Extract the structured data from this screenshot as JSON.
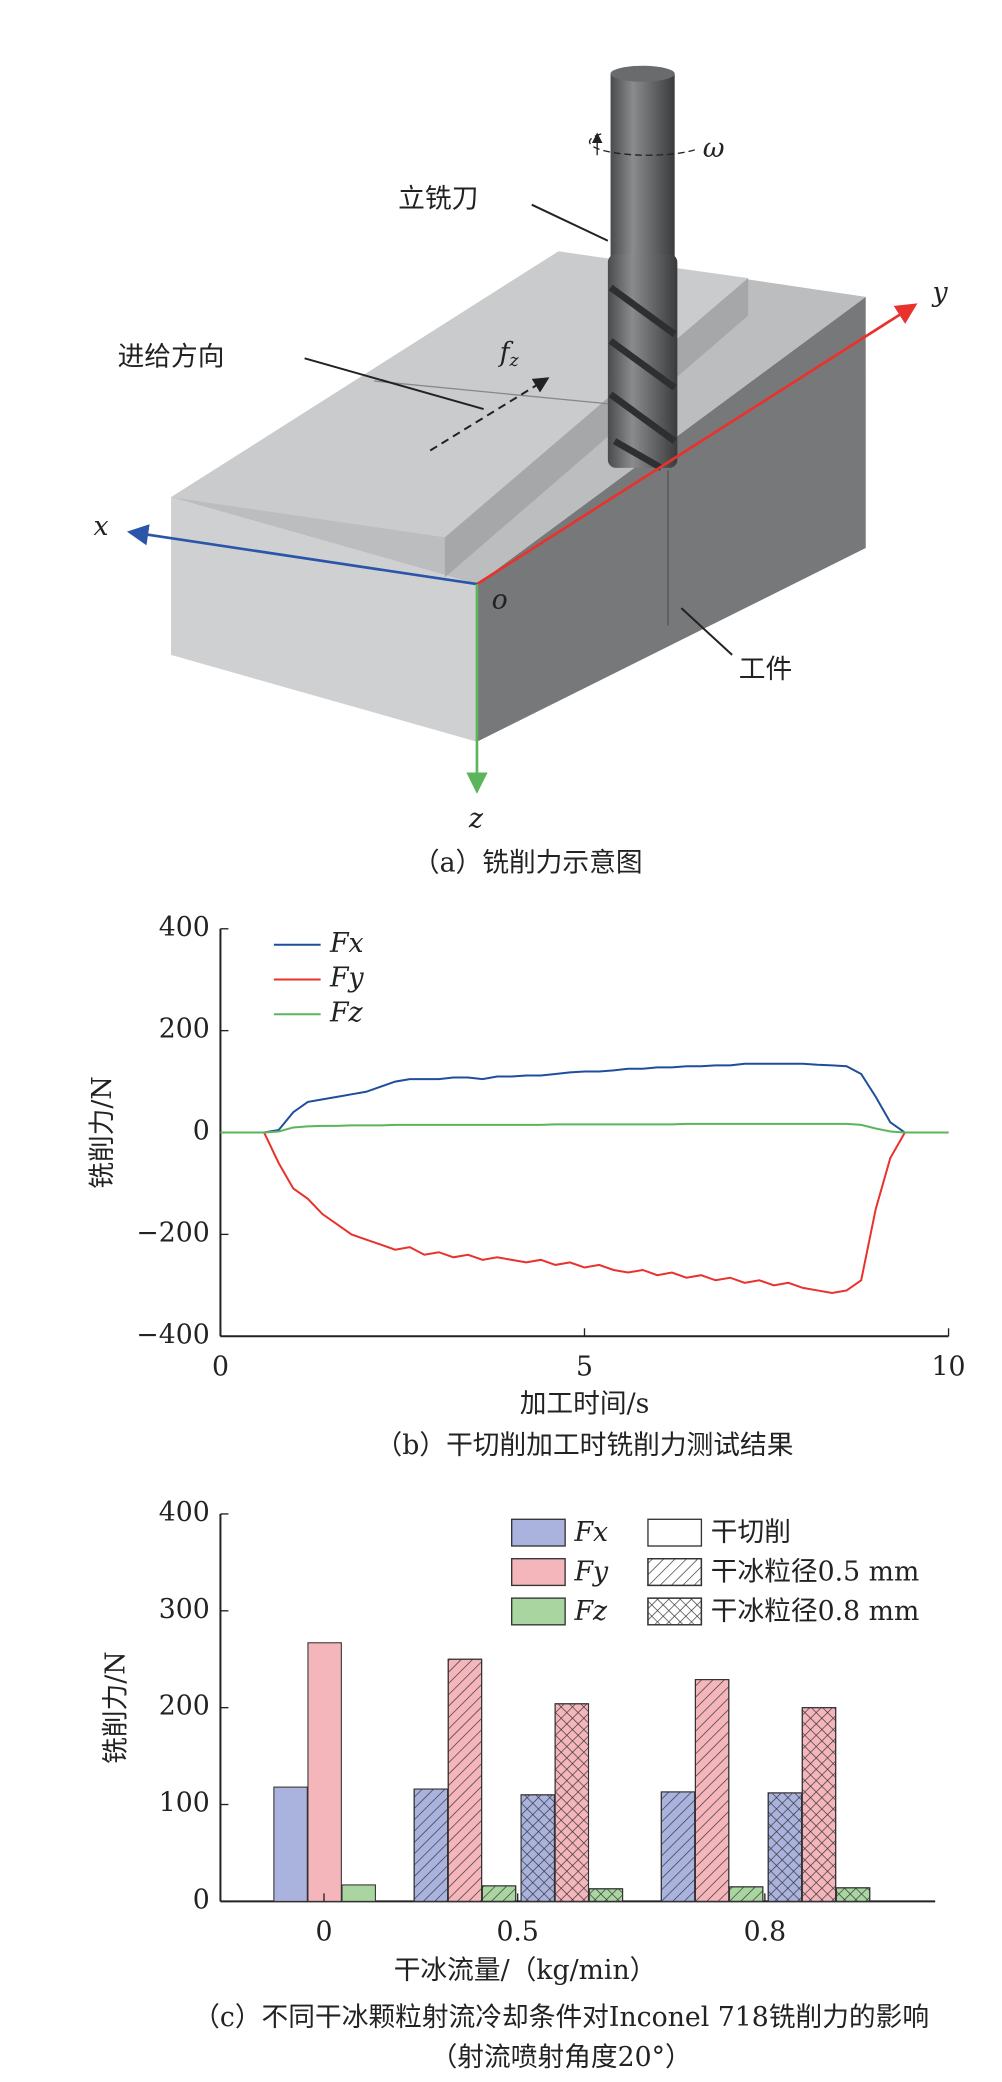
{
  "diagram": {
    "tool": "立铣刀",
    "feed": "进给方向",
    "feed_symbol": {
      "base": "f",
      "sub": "z"
    },
    "omega": "ω",
    "workpiece": "工件",
    "axis_x": "x",
    "axis_y": "y",
    "axis_z": "z",
    "origin": "o",
    "caption": "（a）铣削力示意图"
  },
  "chart_data": [
    {
      "type": "line",
      "ylabel": "铣削力/N",
      "xlabel": "加工时间/s",
      "caption": "（b）干切削加工时铣削力测试结果",
      "x": [
        0,
        0.2,
        0.4,
        0.6,
        0.8,
        1.0,
        1.2,
        1.4,
        1.6,
        1.8,
        2.0,
        2.2,
        2.4,
        2.6,
        2.8,
        3.0,
        3.2,
        3.4,
        3.6,
        3.8,
        4.0,
        4.2,
        4.4,
        4.6,
        4.8,
        5.0,
        5.2,
        5.4,
        5.6,
        5.8,
        6.0,
        6.2,
        6.4,
        6.6,
        6.8,
        7.0,
        7.2,
        7.4,
        7.6,
        7.8,
        8.0,
        8.2,
        8.4,
        8.6,
        8.8,
        9.0,
        9.2,
        9.4,
        9.6,
        9.8,
        10.0
      ],
      "series": [
        {
          "name": "Fx",
          "color": "#1f4e9c",
          "values": [
            0,
            0,
            0,
            0,
            5,
            40,
            60,
            65,
            70,
            75,
            80,
            90,
            100,
            105,
            105,
            105,
            108,
            108,
            105,
            110,
            110,
            112,
            112,
            115,
            118,
            120,
            120,
            122,
            125,
            125,
            128,
            128,
            130,
            130,
            132,
            132,
            135,
            135,
            135,
            135,
            135,
            133,
            132,
            130,
            115,
            70,
            20,
            0,
            0,
            0,
            0
          ]
        },
        {
          "name": "Fy",
          "color": "#e8322d",
          "values": [
            0,
            0,
            0,
            0,
            -60,
            -110,
            -130,
            -160,
            -180,
            -200,
            -210,
            -220,
            -230,
            -225,
            -240,
            -235,
            -245,
            -240,
            -250,
            -245,
            -250,
            -255,
            -250,
            -260,
            -255,
            -265,
            -260,
            -270,
            -275,
            -270,
            -280,
            -275,
            -285,
            -280,
            -290,
            -285,
            -295,
            -290,
            -300,
            -295,
            -305,
            -310,
            -315,
            -310,
            -290,
            -150,
            -50,
            0,
            0,
            0,
            0
          ]
        },
        {
          "name": "Fz",
          "color": "#5bb55b",
          "values": [
            0,
            0,
            0,
            0,
            2,
            10,
            12,
            13,
            13,
            14,
            14,
            14,
            15,
            15,
            15,
            15,
            15,
            15,
            15,
            15,
            15,
            15,
            15,
            16,
            16,
            16,
            16,
            16,
            16,
            16,
            16,
            16,
            17,
            17,
            17,
            17,
            17,
            17,
            17,
            17,
            17,
            17,
            17,
            17,
            15,
            8,
            2,
            0,
            0,
            0,
            0
          ]
        }
      ],
      "xlim": [
        0,
        10
      ],
      "ylim": [
        -400,
        400
      ],
      "xticks": [
        0,
        5,
        10
      ],
      "yticks": [
        {
          "value": -400,
          "label": "−400"
        },
        {
          "value": -200,
          "label": "−200"
        },
        0,
        200,
        400
      ],
      "legend": "upper left"
    },
    {
      "type": "bar",
      "ylabel": "铣削力/N",
      "xlabel": "干冰流量/（kg/min）",
      "caption": [
        "（c）不同干冰颗粒射流冷却条件对Inconel 718铣削力的影响",
        "（射流喷射角度20°）"
      ],
      "categories": [
        "0",
        "0.5",
        "0.8"
      ],
      "conditions": [
        {
          "name": "干切削",
          "pattern": "none"
        },
        {
          "name": "干冰粒径0.5 mm",
          "pattern": "hatch"
        },
        {
          "name": "干冰粒径0.8 mm",
          "pattern": "crosshatch"
        }
      ],
      "series": [
        {
          "name": "Fx",
          "color": "#aab3de",
          "values": [
            [
              118,
              null,
              null
            ],
            [
              null,
              116,
              110
            ],
            [
              null,
              113,
              112
            ]
          ]
        },
        {
          "name": "Fy",
          "color": "#f4b5bb",
          "values": [
            [
              267,
              null,
              null
            ],
            [
              null,
              250,
              204
            ],
            [
              null,
              229,
              200
            ]
          ]
        },
        {
          "name": "Fz",
          "color": "#a8d5a0",
          "values": [
            [
              17,
              null,
              null
            ],
            [
              null,
              16,
              13
            ],
            [
              null,
              15,
              14
            ]
          ]
        }
      ],
      "ylim": [
        0,
        400
      ],
      "yticks": [
        0,
        100,
        200,
        300,
        400
      ],
      "legend": "upper right"
    }
  ]
}
